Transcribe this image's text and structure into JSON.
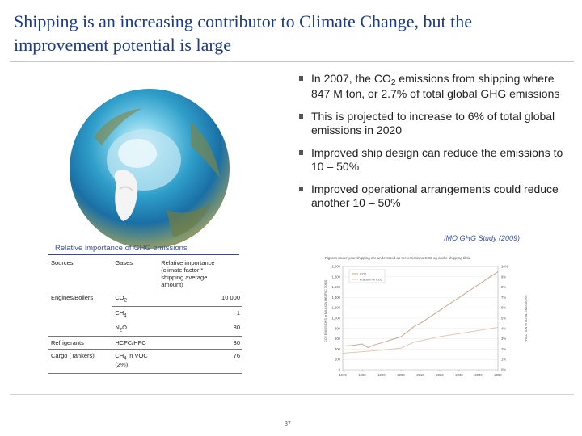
{
  "title": "Shipping is an increasing contributor to Climate Change, but the improvement potential is large",
  "bullets": [
    {
      "pre": "In 2007, the CO",
      "sub": "2",
      "post": " emissions from shipping where 847 M ton, or 2.7% of total global GHG emissions"
    },
    {
      "pre": "This is projected to increase to 6% of total global emissions in 2020",
      "sub": "",
      "post": ""
    },
    {
      "pre": "Improved ship design can reduce the emissions to 10 – 50%",
      "sub": "",
      "post": ""
    },
    {
      "pre": "Improved operational arrangements could reduce another 10 – 50%",
      "sub": "",
      "post": ""
    }
  ],
  "source_note": "IMO GHG Study (2009)",
  "table": {
    "caption": "Relative importance of GHG emissions",
    "headers": [
      "Sources",
      "Gases",
      "Relative importance (climate factor * shipping average amount)"
    ],
    "rows": [
      {
        "source": "Engines/Boilers",
        "gas": "CO2",
        "value": "10 000"
      },
      {
        "source": "",
        "gas": "CH4",
        "value": "1"
      },
      {
        "source": "",
        "gas": "N2O",
        "value": "80"
      },
      {
        "source": "Refrigerants",
        "gas": "HCFC/HFC",
        "value": "30"
      },
      {
        "source": "Cargo (Tankers)",
        "gas": "CH4 in VOC (2%)",
        "value": "76"
      }
    ]
  },
  "chart_data": {
    "type": "line",
    "title": "Figures under your shipping are understood as the emissions CO2 og andre shipping til tid",
    "xlabel": "",
    "ylabel": "CO2 EMISSIONS in MILLION METRIC TONS",
    "ylabel_right": "FRACTION of TOTAL EMISSIONS",
    "x_ticks": [
      "1970",
      "1980",
      "1990",
      "2000",
      "2010",
      "2020",
      "2030",
      "2040",
      "2050"
    ],
    "y_ticks": [
      "0",
      "200",
      "400",
      "600",
      "800",
      "1,000",
      "1,200",
      "1,400",
      "1,600",
      "1,800",
      "2,000"
    ],
    "y2_ticks": [
      "0%",
      "1%",
      "2%",
      "3%",
      "4%",
      "5%",
      "6%",
      "7%",
      "8%",
      "9%",
      "10%"
    ],
    "ylim": [
      0,
      2000
    ],
    "xlim": [
      1970,
      2050
    ],
    "legend": [
      "CO2",
      "Fraction of CO2"
    ],
    "series": [
      {
        "name": "CO2",
        "color": "#c9a98a",
        "x": [
          1970,
          1975,
          1980,
          1983,
          1986,
          1990,
          1995,
          2000,
          2005,
          2007,
          2010,
          2020,
          2030,
          2040,
          2050
        ],
        "values": [
          460,
          470,
          500,
          430,
          480,
          520,
          580,
          640,
          780,
          847,
          900,
          1150,
          1400,
          1650,
          1900
        ]
      },
      {
        "name": "Fraction of CO2",
        "color": "#e0c9b5",
        "x": [
          1970,
          1980,
          1990,
          2000,
          2007,
          2010,
          2020,
          2030,
          2040,
          2050
        ],
        "values": [
          320,
          350,
          380,
          420,
          540,
          560,
          640,
          700,
          760,
          820
        ]
      }
    ]
  },
  "page_number": "37"
}
